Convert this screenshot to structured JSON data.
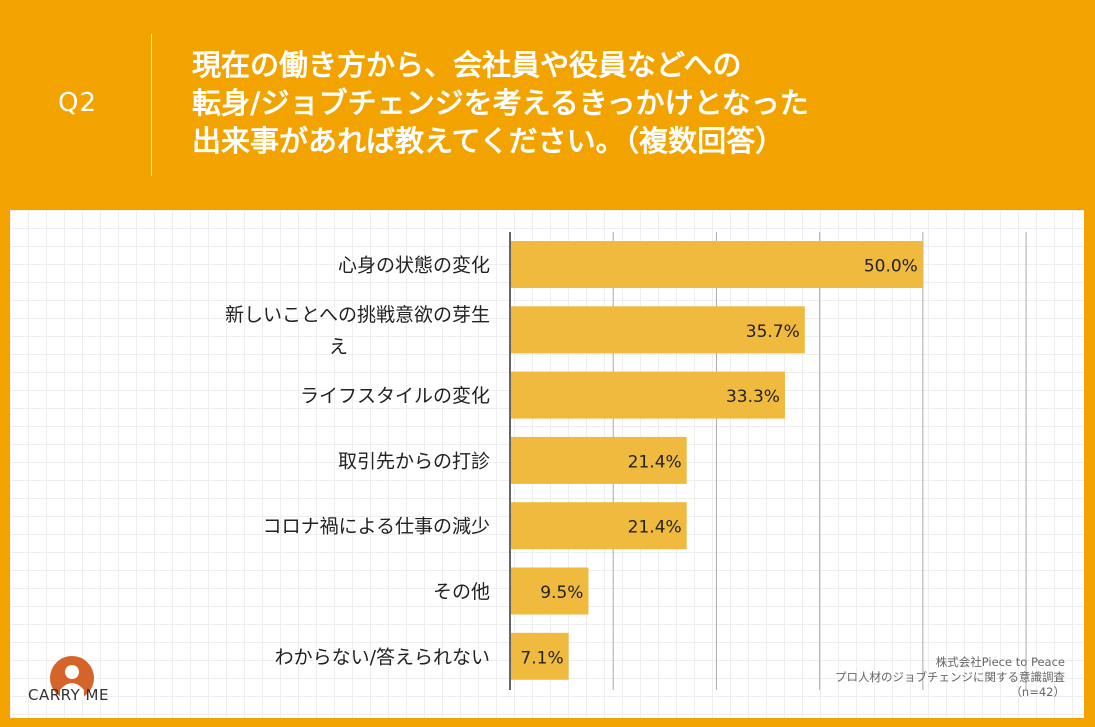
{
  "header": {
    "question_id": "Q2",
    "question_lines": [
      "現在の働き方から、会社員や役員などへの",
      "転身/ジョブチェンジを考えるきっかけとなった",
      "出来事があれば教えてください。（複数回答）"
    ]
  },
  "chart_data": {
    "type": "bar",
    "orientation": "horizontal",
    "categories": [
      "心身の状態の変化",
      "新しいことへの挑戦意欲の芽生え",
      "ライフスタイルの変化",
      "取引先からの打診",
      "コロナ禍による仕事の減少",
      "その他",
      "わからない/答えられない"
    ],
    "category_lines": [
      [
        "心身の状態の変化"
      ],
      [
        "新しいことへの挑戦意欲の芽生",
        "え"
      ],
      [
        "ライフスタイルの変化"
      ],
      [
        "取引先からの打診"
      ],
      [
        "コロナ禍による仕事の減少"
      ],
      [
        "その他"
      ],
      [
        "わからない/答えられない"
      ]
    ],
    "values": [
      50.0,
      35.7,
      33.3,
      21.4,
      21.4,
      9.5,
      7.1
    ],
    "value_labels": [
      "50.0%",
      "35.7%",
      "33.3%",
      "21.4%",
      "21.4%",
      "9.5%",
      "7.1%"
    ],
    "xlim": [
      0,
      70
    ],
    "grid_step": 12.5,
    "bar_color": "#EFBA3E",
    "grid": true
  },
  "branding": {
    "logo_text": "CARRY ME",
    "logo_color": "#D4642A"
  },
  "source": {
    "lines": [
      "株式会社Piece to Peace",
      "プロ人材のジョブチェンジに関する意識調査",
      "（n=42）"
    ]
  }
}
